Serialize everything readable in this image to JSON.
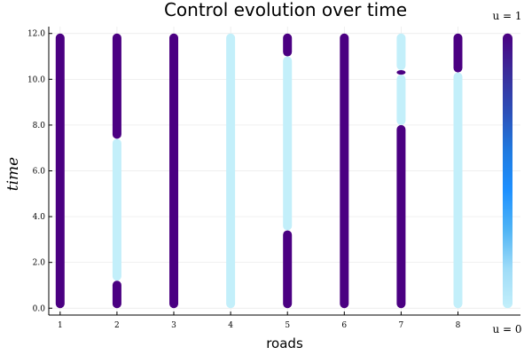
{
  "chart_data": {
    "type": "scatter",
    "title": "Control evolution over time",
    "xlabel": "roads",
    "ylabel": "time",
    "xlim": [
      0.8,
      9.1
    ],
    "ylim": [
      -0.3,
      12.3
    ],
    "xticks": [
      1,
      2,
      3,
      4,
      5,
      6,
      7,
      8
    ],
    "xtick_labels": [
      "1",
      "2",
      "3",
      "4",
      "5",
      "6",
      "7",
      "8"
    ],
    "yticks": [
      0,
      2,
      4,
      6,
      8,
      10,
      12
    ],
    "ytick_labels": [
      "0.0",
      "2.0",
      "4.0",
      "6.0",
      "8.0",
      "10.0",
      "12.0"
    ],
    "grid": true,
    "colorbar": {
      "min_label": "u = 0",
      "max_label": "u = 1",
      "colors": [
        "#c3effa",
        "#9fdcf8",
        "#4fb4f5",
        "#1e90ff",
        "#1f7ae0",
        "#2c4fb8",
        "#3a2c9a",
        "#4b0082"
      ]
    },
    "colors": {
      "u0": "#c3effa",
      "u1": "#4b0082"
    },
    "roads": [
      {
        "road": 1,
        "segments": [
          {
            "from": 0.0,
            "to": 12.0,
            "u": 1
          }
        ]
      },
      {
        "road": 2,
        "segments": [
          {
            "from": 0.0,
            "to": 1.2,
            "u": 1
          },
          {
            "from": 1.2,
            "to": 7.4,
            "u": 0
          },
          {
            "from": 7.4,
            "to": 12.0,
            "u": 1
          }
        ]
      },
      {
        "road": 3,
        "segments": [
          {
            "from": 0.0,
            "to": 12.0,
            "u": 1
          }
        ]
      },
      {
        "road": 4,
        "segments": [
          {
            "from": 0.0,
            "to": 12.0,
            "u": 0
          }
        ]
      },
      {
        "road": 5,
        "segments": [
          {
            "from": 0.0,
            "to": 3.4,
            "u": 1
          },
          {
            "from": 3.4,
            "to": 11.0,
            "u": 0
          },
          {
            "from": 11.0,
            "to": 12.0,
            "u": 1
          }
        ]
      },
      {
        "road": 6,
        "segments": [
          {
            "from": 0.0,
            "to": 12.0,
            "u": 1
          }
        ]
      },
      {
        "road": 7,
        "segments": [
          {
            "from": 0.0,
            "to": 8.0,
            "u": 1
          },
          {
            "from": 8.0,
            "to": 10.2,
            "u": 0
          },
          {
            "from": 10.2,
            "to": 10.4,
            "u": 1
          },
          {
            "from": 10.4,
            "to": 12.0,
            "u": 0
          }
        ]
      },
      {
        "road": 8,
        "segments": [
          {
            "from": 0.0,
            "to": 10.3,
            "u": 0
          },
          {
            "from": 10.3,
            "to": 12.0,
            "u": 1
          }
        ]
      }
    ]
  }
}
